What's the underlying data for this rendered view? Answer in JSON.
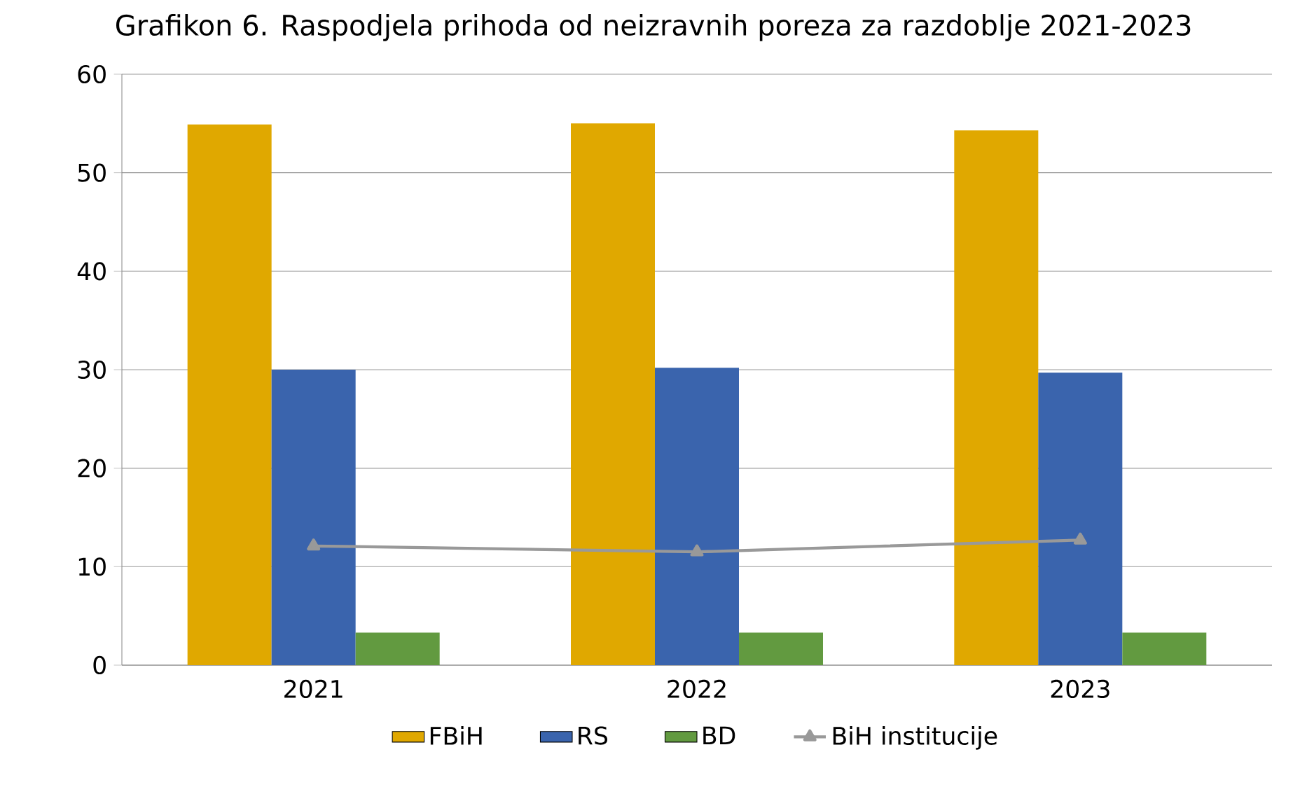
{
  "chart_data": {
    "type": "bar",
    "title": "Grafikon 6. Raspodjela prihoda od neizravnih poreza za razdoblje 2021-2023",
    "categories": [
      "2021",
      "2022",
      "2023"
    ],
    "series": [
      {
        "name": "FBiH",
        "color": "#e0a800",
        "values": [
          54.9,
          55.0,
          54.3
        ]
      },
      {
        "name": "RS",
        "color": "#3a64ad",
        "values": [
          30.0,
          30.2,
          29.7
        ]
      },
      {
        "name": "BD",
        "color": "#629a40",
        "values": [
          3.3,
          3.3,
          3.3
        ]
      },
      {
        "name": "BiH institucije",
        "type": "line",
        "color": "#999999",
        "marker": "triangle",
        "values": [
          12.1,
          11.5,
          12.7
        ]
      }
    ],
    "ylim": [
      0,
      60
    ],
    "yticks": [
      0,
      10,
      20,
      30,
      40,
      50,
      60
    ],
    "grid": "y",
    "legend": "bottom"
  }
}
